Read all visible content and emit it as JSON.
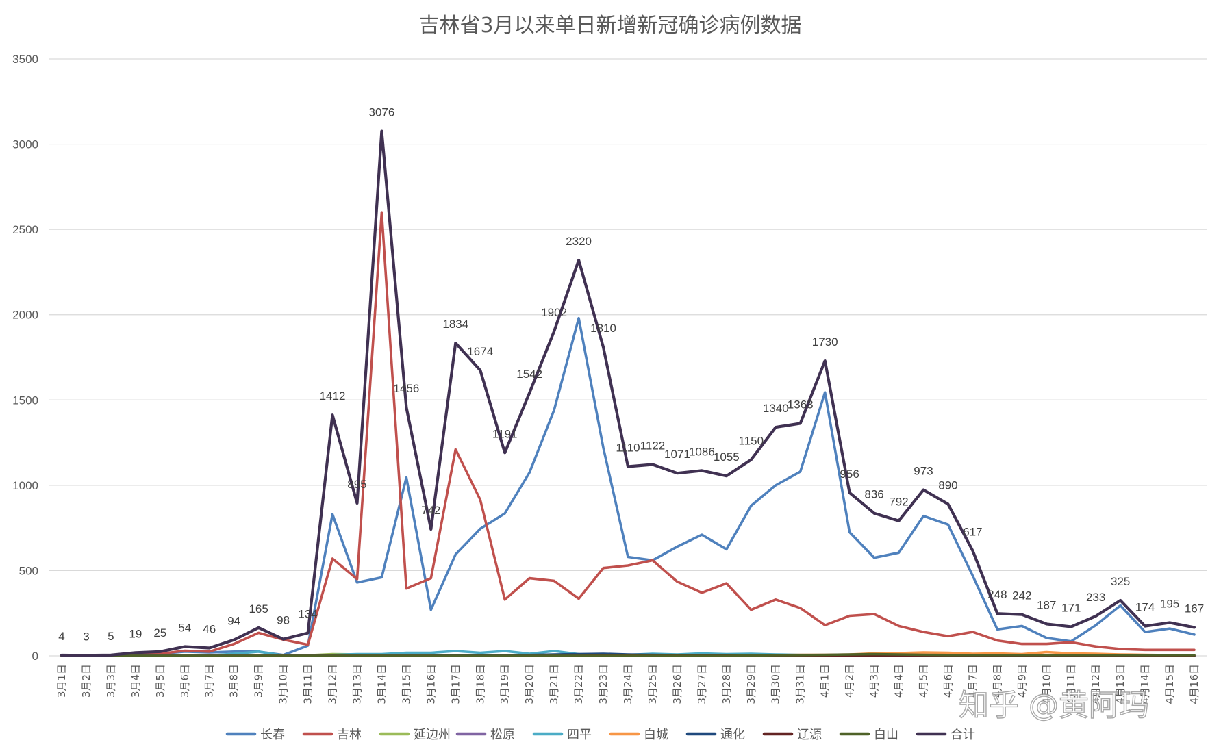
{
  "watermark": "知乎 @黄阿玛",
  "chart_data": {
    "type": "line",
    "title": "吉林省3月以来单日新增新冠确诊病例数据",
    "ylim": [
      0,
      3500
    ],
    "yticks": [
      0,
      500,
      1000,
      1500,
      2000,
      2500,
      3000,
      3500
    ],
    "grid": true,
    "legend_position": "bottom",
    "categories": [
      "3月1日",
      "3月2日",
      "3月3日",
      "3月4日",
      "3月5日",
      "3月6日",
      "3月7日",
      "3月8日",
      "3月9日",
      "3月10日",
      "3月11日",
      "3月12日",
      "3月13日",
      "3月14日",
      "3月15日",
      "3月16日",
      "3月17日",
      "3月18日",
      "3月19日",
      "3月20日",
      "3月21日",
      "3月22日",
      "3月23日",
      "3月24日",
      "3月25日",
      "3月26日",
      "3月27日",
      "3月28日",
      "3月29日",
      "3月30日",
      "3月31日",
      "4月1日",
      "4月2日",
      "4月3日",
      "4月4日",
      "4月5日",
      "4月6日",
      "4月7日",
      "4月8日",
      "4月9日",
      "4月10日",
      "4月11日",
      "4月12日",
      "4月13日",
      "4月14日",
      "4月15日",
      "4月16日"
    ],
    "series": [
      {
        "name": "长春",
        "color": "#4f81bd",
        "values": [
          2,
          2,
          3,
          10,
          12,
          25,
          20,
          25,
          25,
          5,
          60,
          830,
          430,
          460,
          1045,
          270,
          595,
          745,
          835,
          1075,
          1440,
          1980,
          1220,
          580,
          560,
          640,
          710,
          625,
          880,
          1000,
          1080,
          1545,
          725,
          575,
          605,
          820,
          770,
          470,
          155,
          175,
          105,
          85,
          180,
          295,
          140,
          160,
          125
        ]
      },
      {
        "name": "吉林",
        "color": "#c0504d",
        "values": [
          2,
          1,
          2,
          8,
          12,
          30,
          25,
          70,
          135,
          95,
          65,
          570,
          450,
          2600,
          395,
          455,
          1210,
          915,
          330,
          455,
          440,
          335,
          515,
          530,
          560,
          435,
          370,
          425,
          270,
          330,
          280,
          180,
          235,
          245,
          175,
          140,
          115,
          140,
          90,
          70,
          70,
          80,
          55,
          40,
          35,
          35,
          35
        ]
      },
      {
        "name": "延边州",
        "color": "#9bbb59",
        "values": [
          0,
          0,
          0,
          1,
          1,
          1,
          1,
          2,
          2,
          1,
          3,
          10,
          8,
          5,
          4,
          4,
          3,
          3,
          2,
          3,
          4,
          3,
          3,
          2,
          2,
          2,
          2,
          3,
          3,
          2,
          2,
          2,
          1,
          1,
          1,
          1,
          1,
          1,
          1,
          1,
          1,
          0,
          1,
          1,
          0,
          0,
          0
        ]
      },
      {
        "name": "松原",
        "color": "#8064a2",
        "values": [
          0,
          0,
          0,
          0,
          0,
          0,
          0,
          0,
          0,
          0,
          0,
          3,
          4,
          3,
          2,
          2,
          2,
          1,
          1,
          1,
          1,
          1,
          1,
          1,
          1,
          1,
          1,
          1,
          1,
          1,
          1,
          1,
          0,
          0,
          0,
          0,
          0,
          0,
          0,
          0,
          0,
          0,
          0,
          0,
          0,
          0,
          0
        ]
      },
      {
        "name": "四平",
        "color": "#4bacc6",
        "values": [
          0,
          0,
          0,
          0,
          1,
          1,
          2,
          12,
          25,
          2,
          5,
          5,
          10,
          10,
          18,
          18,
          28,
          18,
          28,
          12,
          28,
          10,
          8,
          6,
          12,
          8,
          14,
          10,
          12,
          8,
          6,
          4,
          3,
          3,
          2,
          2,
          2,
          2,
          1,
          1,
          1,
          1,
          1,
          1,
          1,
          1,
          0
        ]
      },
      {
        "name": "白城",
        "color": "#f79646",
        "values": [
          0,
          0,
          0,
          0,
          0,
          0,
          0,
          0,
          0,
          0,
          0,
          0,
          0,
          0,
          0,
          0,
          0,
          0,
          0,
          0,
          0,
          0,
          0,
          0,
          0,
          2,
          3,
          4,
          4,
          4,
          6,
          6,
          8,
          14,
          16,
          20,
          18,
          12,
          14,
          10,
          22,
          14,
          12,
          8,
          6,
          4,
          2
        ]
      },
      {
        "name": "通化",
        "color": "#1f497d",
        "values": [
          0,
          0,
          0,
          0,
          0,
          0,
          0,
          0,
          0,
          0,
          0,
          0,
          0,
          0,
          0,
          0,
          2,
          3,
          5,
          5,
          8,
          10,
          12,
          8,
          6,
          4,
          3,
          3,
          2,
          2,
          2,
          2,
          1,
          1,
          1,
          1,
          1,
          1,
          0,
          0,
          0,
          0,
          0,
          0,
          0,
          0,
          0
        ]
      },
      {
        "name": "辽源",
        "color": "#632423",
        "values": [
          0,
          0,
          0,
          0,
          0,
          0,
          0,
          0,
          0,
          0,
          0,
          0,
          0,
          0,
          0,
          0,
          0,
          0,
          0,
          0,
          0,
          0,
          2,
          3,
          4,
          5,
          4,
          3,
          3,
          3,
          2,
          2,
          2,
          2,
          2,
          2,
          2,
          1,
          1,
          1,
          1,
          1,
          1,
          1,
          1,
          1,
          1
        ]
      },
      {
        "name": "白山",
        "color": "#4f6228",
        "values": [
          0,
          0,
          0,
          0,
          0,
          0,
          0,
          0,
          0,
          0,
          0,
          0,
          0,
          0,
          0,
          0,
          0,
          0,
          0,
          0,
          0,
          0,
          0,
          0,
          0,
          0,
          0,
          0,
          2,
          4,
          5,
          6,
          8,
          10,
          8,
          6,
          5,
          5,
          5,
          5,
          5,
          5,
          5,
          5,
          5,
          5,
          5
        ]
      },
      {
        "name": "合计",
        "color": "#403152",
        "values": [
          4,
          3,
          5,
          19,
          25,
          54,
          46,
          94,
          165,
          98,
          134,
          1412,
          895,
          3076,
          1456,
          742,
          1834,
          1674,
          1191,
          1542,
          1902,
          2320,
          1810,
          1110,
          1122,
          1071,
          1086,
          1055,
          1150,
          1340,
          1363,
          1730,
          956,
          836,
          792,
          973,
          890,
          617,
          248,
          242,
          187,
          171,
          233,
          325,
          174,
          195,
          167
        ],
        "data_labels": true
      }
    ]
  }
}
